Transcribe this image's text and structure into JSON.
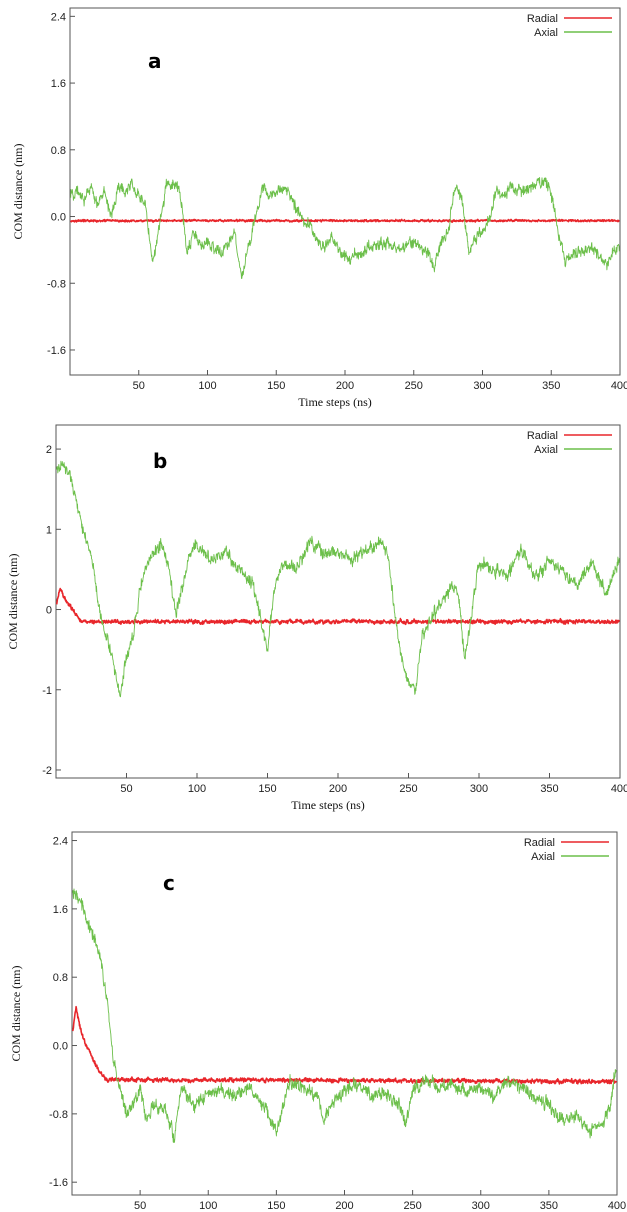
{
  "chart_data": [
    {
      "type": "line",
      "panel_label": "a",
      "xlabel": "Time steps (ns)",
      "ylabel": "COM distance  (nm)",
      "xlim": [
        0,
        400
      ],
      "ylim": [
        -1.9,
        2.5
      ],
      "xticks": [
        50,
        100,
        150,
        200,
        250,
        300,
        350,
        400
      ],
      "yticks": [
        2.4,
        1.6,
        0.8,
        0.0,
        -0.8,
        -1.6
      ],
      "ytick_labels": [
        "2.4",
        "1.6",
        "0.8",
        "0.0",
        "-0.8",
        "-1.6"
      ],
      "legend_position": "top-right",
      "grid": false,
      "series": [
        {
          "name": "Radial",
          "color": "#e8262b",
          "x": [
            0,
            400
          ],
          "y": [
            -0.05,
            -0.05
          ],
          "noise": 0.015
        },
        {
          "name": "Axial",
          "color": "#6cbf4a",
          "x": [
            0,
            5,
            10,
            15,
            20,
            25,
            30,
            35,
            40,
            45,
            50,
            55,
            60,
            65,
            70,
            75,
            80,
            85,
            90,
            95,
            100,
            110,
            120,
            125,
            130,
            135,
            140,
            145,
            150,
            155,
            160,
            165,
            170,
            175,
            180,
            185,
            190,
            200,
            210,
            220,
            230,
            240,
            250,
            260,
            265,
            270,
            275,
            280,
            285,
            290,
            295,
            300,
            305,
            310,
            315,
            320,
            330,
            340,
            345,
            350,
            355,
            360,
            370,
            380,
            390,
            395
          ],
          "y": [
            0.25,
            0.3,
            0.2,
            0.35,
            0.15,
            0.3,
            0.0,
            0.35,
            0.3,
            0.4,
            0.25,
            0.1,
            -0.55,
            -0.1,
            0.35,
            0.4,
            0.3,
            -0.4,
            -0.2,
            -0.35,
            -0.3,
            -0.45,
            -0.2,
            -0.75,
            -0.35,
            0.0,
            0.35,
            0.25,
            0.3,
            0.35,
            0.3,
            0.05,
            -0.05,
            -0.1,
            -0.3,
            -0.4,
            -0.25,
            -0.5,
            -0.45,
            -0.35,
            -0.3,
            -0.4,
            -0.3,
            -0.45,
            -0.6,
            -0.3,
            -0.2,
            0.35,
            0.25,
            -0.45,
            -0.25,
            -0.2,
            -0.05,
            0.35,
            0.25,
            0.35,
            0.3,
            0.4,
            0.45,
            0.3,
            -0.2,
            -0.5,
            -0.45,
            -0.35,
            -0.6,
            -0.4
          ],
          "noise": 0.09
        }
      ]
    },
    {
      "type": "line",
      "panel_label": "b",
      "xlabel": "Time steps (ns)",
      "ylabel": "COM distance  (nm)",
      "xlim": [
        0,
        400
      ],
      "ylim": [
        -2.1,
        2.3
      ],
      "xticks": [
        50,
        100,
        150,
        200,
        250,
        300,
        350,
        400
      ],
      "yticks": [
        2,
        1,
        0,
        -1,
        -2
      ],
      "ytick_labels": [
        "2",
        "1",
        "0",
        "-1",
        "-2"
      ],
      "legend_position": "top-right",
      "grid": false,
      "series": [
        {
          "name": "Radial",
          "color": "#e8262b",
          "x": [
            0,
            3,
            6,
            10,
            14,
            18,
            400
          ],
          "y": [
            0.05,
            0.25,
            0.15,
            0.05,
            -0.05,
            -0.15,
            -0.15
          ],
          "noise": 0.03
        },
        {
          "name": "Axial",
          "color": "#6cbf4a",
          "x": [
            0,
            5,
            10,
            15,
            20,
            25,
            30,
            35,
            40,
            45,
            50,
            55,
            60,
            65,
            70,
            75,
            80,
            85,
            90,
            95,
            100,
            110,
            120,
            130,
            140,
            145,
            150,
            155,
            160,
            170,
            180,
            190,
            200,
            210,
            220,
            230,
            235,
            240,
            245,
            250,
            255,
            260,
            270,
            280,
            285,
            290,
            295,
            300,
            310,
            320,
            330,
            340,
            350,
            360,
            370,
            380,
            390,
            400
          ],
          "y": [
            1.75,
            1.8,
            1.7,
            1.3,
            0.9,
            0.7,
            0.1,
            -0.3,
            -0.6,
            -1.1,
            -0.6,
            -0.3,
            0.3,
            0.6,
            0.75,
            0.8,
            0.5,
            -0.05,
            0.3,
            0.7,
            0.8,
            0.6,
            0.75,
            0.5,
            0.3,
            -0.1,
            -0.5,
            0.3,
            0.6,
            0.5,
            0.85,
            0.7,
            0.75,
            0.6,
            0.75,
            0.85,
            0.7,
            0.0,
            -0.6,
            -0.9,
            -1.0,
            -0.3,
            0.0,
            0.3,
            0.2,
            -0.65,
            0.0,
            0.6,
            0.5,
            0.4,
            0.75,
            0.4,
            0.6,
            0.45,
            0.3,
            0.6,
            0.2,
            0.65
          ],
          "noise": 0.1
        }
      ]
    },
    {
      "type": "line",
      "panel_label": "c",
      "xlabel": "Time steps (ns)",
      "ylabel": "COM distance  (nm)",
      "xlim": [
        0,
        400
      ],
      "ylim": [
        -1.75,
        2.5
      ],
      "xticks": [
        50,
        100,
        150,
        200,
        250,
        300,
        350,
        400
      ],
      "yticks": [
        2.4,
        1.6,
        0.8,
        0.0,
        -0.8,
        -1.6
      ],
      "ytick_labels": [
        "2.4",
        "1.6",
        "0.8",
        "0.0",
        "-0.8",
        "-1.6"
      ],
      "legend_position": "top-right",
      "grid": false,
      "series": [
        {
          "name": "Radial",
          "color": "#e8262b",
          "x": [
            0,
            3,
            6,
            10,
            15,
            20,
            25,
            400
          ],
          "y": [
            0.1,
            0.45,
            0.2,
            0.0,
            -0.15,
            -0.3,
            -0.4,
            -0.42
          ],
          "noise": 0.03
        },
        {
          "name": "Axial",
          "color": "#6cbf4a",
          "x": [
            0,
            5,
            10,
            15,
            20,
            25,
            30,
            35,
            40,
            45,
            50,
            55,
            60,
            70,
            75,
            80,
            90,
            100,
            110,
            120,
            130,
            140,
            150,
            160,
            170,
            180,
            185,
            190,
            200,
            210,
            220,
            230,
            240,
            245,
            250,
            260,
            270,
            280,
            290,
            300,
            310,
            320,
            330,
            340,
            350,
            360,
            370,
            380,
            390,
            395,
            400
          ],
          "y": [
            1.8,
            1.75,
            1.5,
            1.3,
            1.1,
            0.6,
            -0.1,
            -0.5,
            -0.8,
            -0.7,
            -0.5,
            -0.9,
            -0.7,
            -0.8,
            -1.1,
            -0.5,
            -0.7,
            -0.55,
            -0.5,
            -0.6,
            -0.5,
            -0.7,
            -1.0,
            -0.4,
            -0.5,
            -0.6,
            -0.9,
            -0.7,
            -0.5,
            -0.45,
            -0.6,
            -0.55,
            -0.7,
            -0.95,
            -0.5,
            -0.4,
            -0.5,
            -0.45,
            -0.55,
            -0.5,
            -0.6,
            -0.4,
            -0.5,
            -0.6,
            -0.7,
            -0.9,
            -0.8,
            -1.0,
            -0.9,
            -0.7,
            -0.2
          ],
          "noise": 0.1
        }
      ]
    }
  ]
}
